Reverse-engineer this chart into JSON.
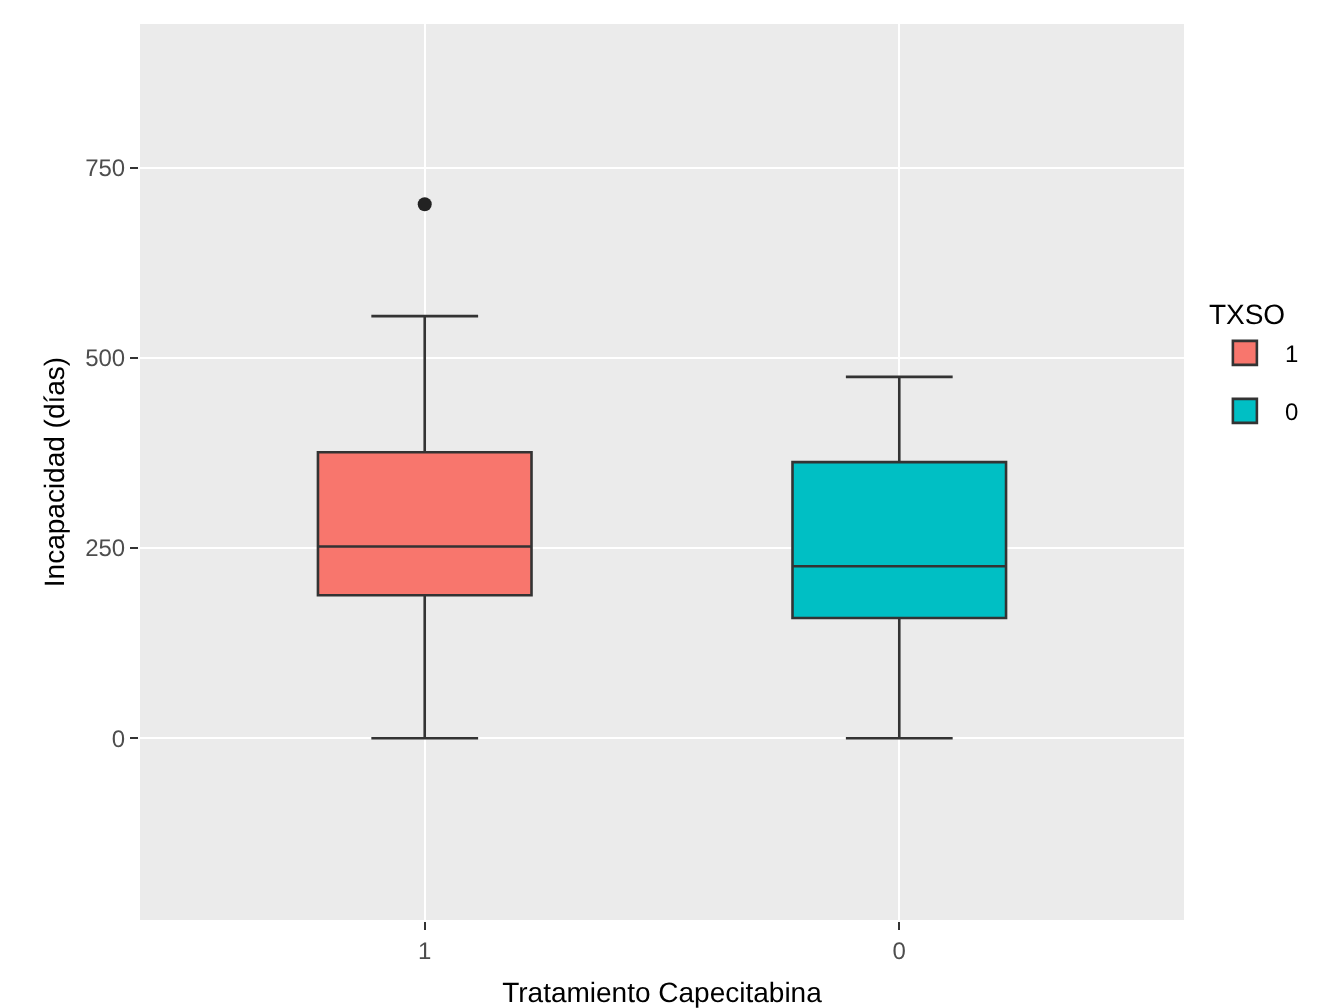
{
  "chart_data": {
    "type": "box",
    "xlabel": "Tratamiento Capecitabina",
    "ylabel": "Incapacidad (días)",
    "legend_title": "TXSO",
    "categories": [
      "1",
      "0"
    ],
    "series": [
      {
        "name": "1",
        "color": "#f8766d",
        "boxes": [
          {
            "low": 0,
            "q1": 188,
            "median": 252,
            "q3": 376,
            "high": 555,
            "outliers": [
              702
            ]
          },
          null
        ]
      },
      {
        "name": "0",
        "color": "#00bfc4",
        "boxes": [
          null,
          {
            "low": 0,
            "q1": 158,
            "median": 226,
            "q3": 363,
            "high": 475
          }
        ]
      }
    ],
    "ylim": [
      -239,
      939
    ],
    "yticks": [
      0,
      250,
      500,
      750
    ],
    "grid": true,
    "legend": "right"
  }
}
